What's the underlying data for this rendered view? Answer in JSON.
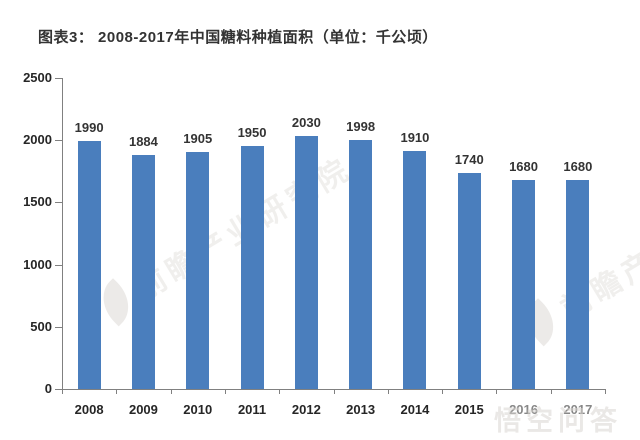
{
  "title": "图表3： 2008-2017年中国糖料种植面积（单位：千公顷）",
  "chart_data": {
    "type": "bar",
    "title": "图表3： 2008-2017年中国糖料种植面积（单位：千公顷）",
    "categories": [
      "2008",
      "2009",
      "2010",
      "2011",
      "2012",
      "2013",
      "2014",
      "2015",
      "2016",
      "2017"
    ],
    "values": [
      1990,
      1884,
      1905,
      1950,
      2030,
      1998,
      1910,
      1740,
      1680,
      1680
    ],
    "xlabel": "",
    "ylabel": "",
    "unit": "千公顷",
    "ylim": [
      0,
      2500
    ],
    "yticks": [
      0,
      500,
      1000,
      1500,
      2000,
      2500
    ],
    "grid": false,
    "value_labels": true,
    "legend": "none",
    "bar_color": "#4A7EBD",
    "axis_color": "#808080",
    "label_color": "#262626"
  },
  "watermarks": {
    "diagonal_text": "前瞻产业研究院",
    "corner_text": "悟空问答"
  }
}
